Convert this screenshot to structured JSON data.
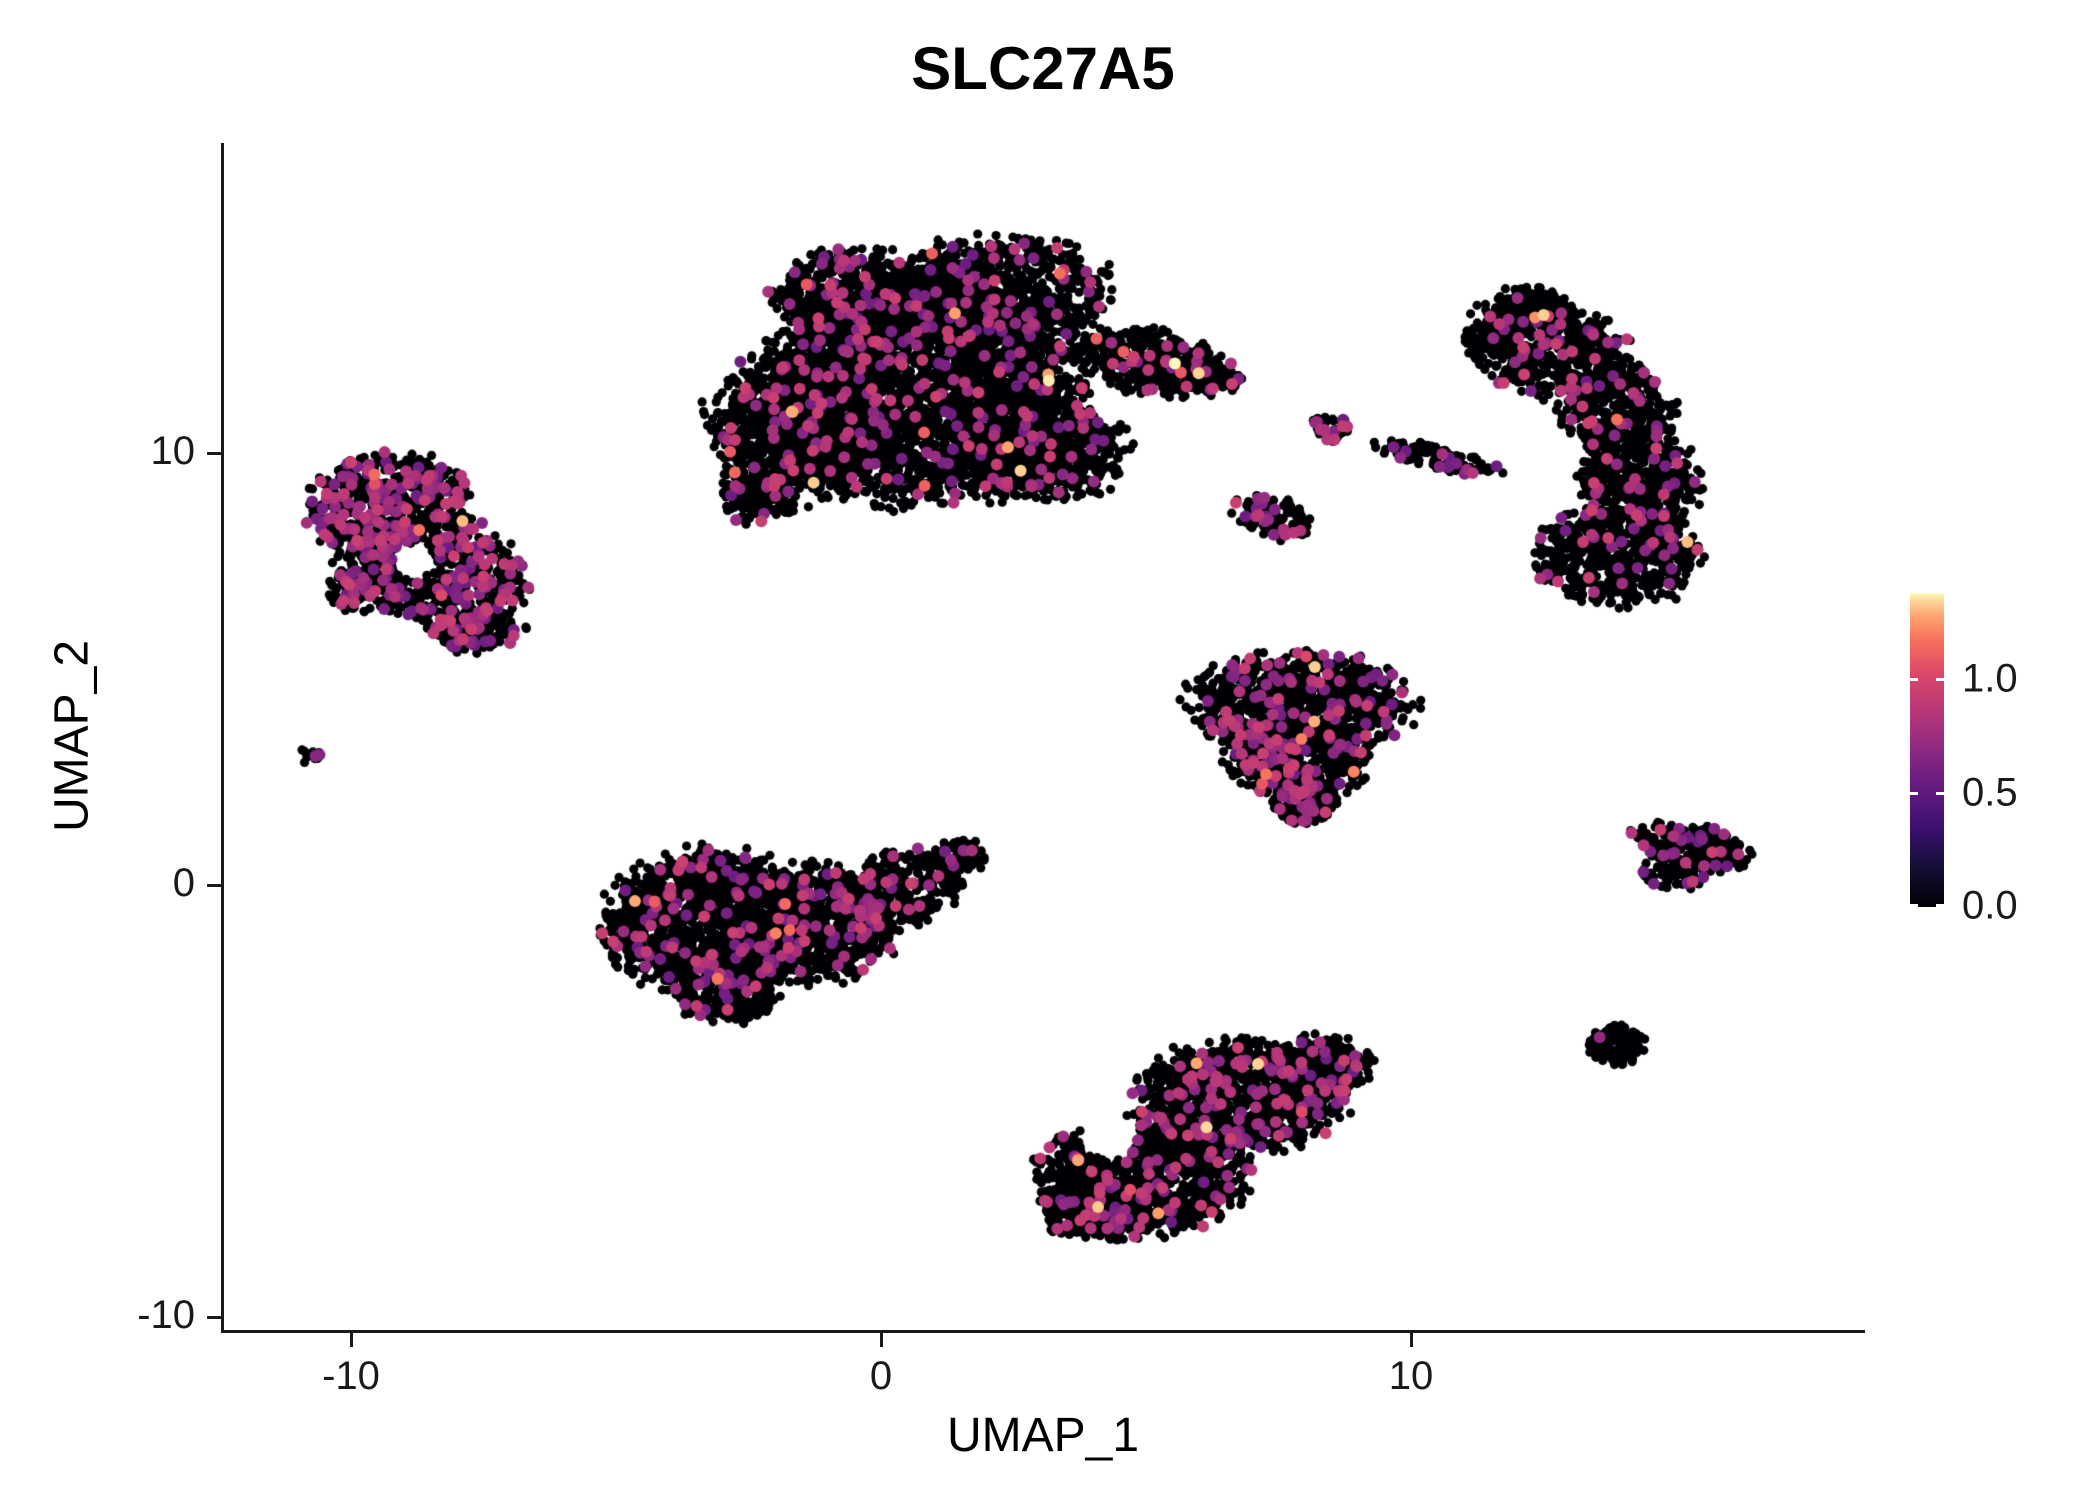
{
  "title": "SLC27A5",
  "axes": {
    "x_label": "UMAP_1",
    "y_label": "UMAP_2",
    "x_ticks": [
      -10,
      0,
      10
    ],
    "y_ticks": [
      -10,
      0,
      10
    ]
  },
  "legend": {
    "labels": [
      "1.0",
      "0.5",
      "0.0"
    ],
    "values": [
      1.0,
      0.5,
      0.0
    ],
    "max_value": 1.38,
    "colormap_stops": [
      [
        0.0,
        "#000004"
      ],
      [
        0.13,
        "#140e36"
      ],
      [
        0.25,
        "#3b0f70"
      ],
      [
        0.38,
        "#641a80"
      ],
      [
        0.5,
        "#8c2981"
      ],
      [
        0.62,
        "#b73779"
      ],
      [
        0.75,
        "#de4968"
      ],
      [
        0.85,
        "#f7705c"
      ],
      [
        0.92,
        "#fe9f6d"
      ],
      [
        0.97,
        "#fecf92"
      ],
      [
        1.0,
        "#fcfdbf"
      ]
    ]
  },
  "chart_data": {
    "type": "scatter",
    "title": "SLC27A5",
    "xlabel": "UMAP_1",
    "ylabel": "UMAP_2",
    "xlim": [
      -12.4,
      18.5
    ],
    "ylim": [
      -10.3,
      17.2
    ],
    "x_ticks": [
      -10,
      0,
      10
    ],
    "y_ticks": [
      -10,
      0,
      10
    ],
    "grid": false,
    "legend_position": "right",
    "colorbar": {
      "ticks": [
        0.0,
        0.5,
        1.0
      ],
      "range": [
        0,
        1.38
      ],
      "colormap": "magma"
    },
    "point_radius_px": {
      "zero": 4.6,
      "expressing": 6.0
    },
    "seed": 42,
    "encoding": "UMAP embedding of single cells colored by SLC27A5 expression; clusters given as gaussian-ellipse components [x, y, rx, ry, rot_deg, n_cells] in UMAP coordinates; frac_mid = fraction of cells with expression ~0.55-0.95, frac_high = fraction ~1.0-1.38, remainder 0.0 (black)",
    "clusters": [
      {
        "name": "top-center-large",
        "frac_mid": 0.055,
        "frac_high": 0.004,
        "components": [
          [
            0.8,
            11.6,
            2.9,
            2.6,
            0,
            3300
          ],
          [
            -1.5,
            10.6,
            1.7,
            1.6,
            0,
            900
          ],
          [
            2.3,
            13.8,
            1.9,
            1.2,
            0,
            700
          ],
          [
            -0.5,
            13.7,
            1.5,
            1.0,
            0,
            450
          ],
          [
            3.2,
            10.0,
            1.4,
            1.1,
            0,
            500
          ],
          [
            5.1,
            12.1,
            1.4,
            0.7,
            -15,
            380
          ],
          [
            6.3,
            11.7,
            0.5,
            0.3,
            0,
            50
          ],
          [
            -2.3,
            9.0,
            0.8,
            0.6,
            0,
            150
          ]
        ]
      },
      {
        "name": "upper-left",
        "frac_mid": 0.22,
        "frac_high": 0.005,
        "holes": [
          [
            -8.8,
            7.5,
            0.4
          ]
        ],
        "components": [
          [
            -9.2,
            8.6,
            1.5,
            1.3,
            0,
            700
          ],
          [
            -8.0,
            7.0,
            1.3,
            1.1,
            0,
            450
          ],
          [
            -9.7,
            6.9,
            0.7,
            0.6,
            0,
            150
          ],
          [
            -7.6,
            5.9,
            0.8,
            0.55,
            0,
            130
          ]
        ]
      },
      {
        "name": "tiny-left-dot",
        "frac_mid": 0.25,
        "frac_high": 0,
        "components": [
          [
            -10.8,
            3.0,
            0.22,
            0.18,
            0,
            12
          ]
        ]
      },
      {
        "name": "center-left-lower",
        "frac_mid": 0.075,
        "frac_high": 0.004,
        "components": [
          [
            -3.2,
            -0.9,
            1.9,
            1.6,
            0,
            1400
          ],
          [
            -1.3,
            -0.9,
            1.5,
            1.3,
            0,
            700
          ],
          [
            0.3,
            -0.1,
            1.3,
            0.8,
            25,
            300
          ],
          [
            1.5,
            0.7,
            0.5,
            0.35,
            0,
            80
          ],
          [
            -2.9,
            -2.6,
            0.9,
            0.6,
            0,
            200
          ]
        ]
      },
      {
        "name": "mid-right-triangle",
        "frac_mid": 0.1,
        "frac_high": 0.006,
        "components": [
          [
            7.9,
            4.2,
            2.0,
            1.1,
            0,
            900
          ],
          [
            7.9,
            2.9,
            1.3,
            0.9,
            0,
            450
          ],
          [
            8.0,
            1.9,
            0.6,
            0.5,
            0,
            150
          ]
        ]
      },
      {
        "name": "bottom-center",
        "frac_mid": 0.085,
        "frac_high": 0.005,
        "holes": [
          [
            4.3,
            -5.8,
            0.55
          ]
        ],
        "components": [
          [
            5.0,
            -6.7,
            1.9,
            1.3,
            0,
            1100
          ],
          [
            6.8,
            -4.9,
            1.9,
            1.2,
            0,
            1000
          ],
          [
            4.0,
            -7.5,
            1.0,
            0.7,
            0,
            300
          ],
          [
            8.3,
            -4.2,
            0.9,
            0.7,
            0,
            250
          ]
        ]
      },
      {
        "name": "right-crescent",
        "frac_mid": 0.06,
        "frac_high": 0.002,
        "components": [
          [
            12.6,
            12.4,
            1.6,
            1.0,
            -20,
            600
          ],
          [
            13.9,
            11.0,
            1.0,
            1.0,
            0,
            350
          ],
          [
            14.3,
            9.3,
            1.1,
            1.3,
            0,
            450
          ],
          [
            13.9,
            7.6,
            1.5,
            1.1,
            0,
            550
          ],
          [
            12.4,
            13.3,
            0.8,
            0.5,
            -25,
            150
          ]
        ]
      },
      {
        "name": "small-blob-a",
        "frac_mid": 0.15,
        "frac_high": 0,
        "components": [
          [
            8.5,
            10.6,
            0.35,
            0.3,
            0,
            40
          ]
        ]
      },
      {
        "name": "small-blob-b",
        "frac_mid": 0.12,
        "frac_high": 0,
        "components": [
          [
            7.4,
            8.5,
            0.75,
            0.45,
            -20,
            100
          ]
        ]
      },
      {
        "name": "small-streak",
        "frac_mid": 0.1,
        "frac_high": 0,
        "components": [
          [
            10.5,
            9.9,
            1.2,
            0.25,
            -14,
            130
          ]
        ]
      },
      {
        "name": "right-small-arrow",
        "frac_mid": 0.12,
        "frac_high": 0.003,
        "components": [
          [
            15.3,
            0.9,
            1.1,
            0.45,
            -15,
            200
          ],
          [
            15.0,
            0.3,
            0.6,
            0.4,
            0,
            80
          ]
        ]
      },
      {
        "name": "right-small-round",
        "frac_mid": 0.02,
        "frac_high": 0,
        "components": [
          [
            13.9,
            -3.7,
            0.5,
            0.45,
            0,
            130
          ]
        ]
      }
    ]
  }
}
